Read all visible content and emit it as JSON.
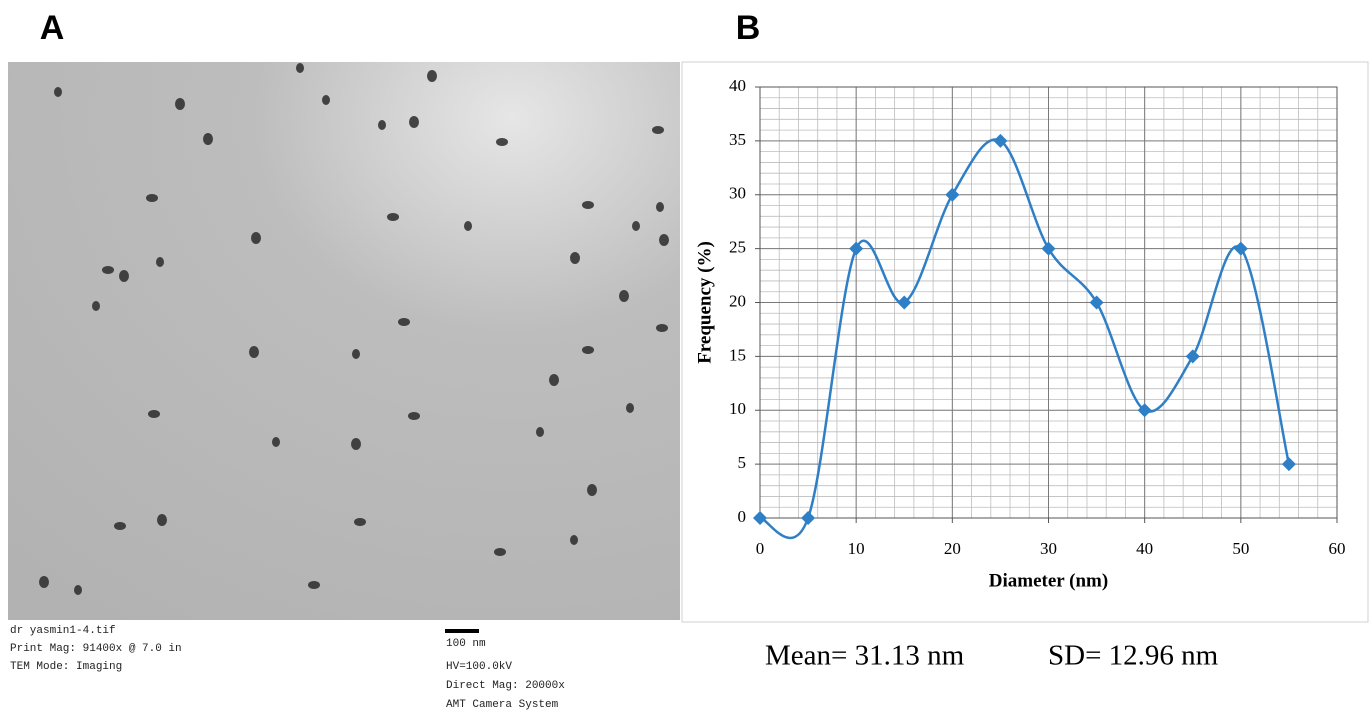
{
  "panel_a": {
    "label": "A",
    "caption_left": [
      "dr yasmin1-4.tif",
      "Print Mag:  91400x @ 7.0 in",
      "TEM Mode: Imaging"
    ],
    "scale_bar": "100 nm",
    "caption_right": [
      "HV=100.0kV",
      "Direct Mag: 20000x",
      "AMT Camera System"
    ]
  },
  "panel_b": {
    "label": "B",
    "summary": [
      "Mean= 31.13 nm",
      "SD= 12.96 nm"
    ]
  },
  "chart_data": {
    "type": "line",
    "x_label": "Diameter (nm)",
    "y_label": "Frequency (%)",
    "x": [
      0,
      5,
      10,
      15,
      20,
      25,
      30,
      35,
      40,
      45,
      50,
      55
    ],
    "values": [
      0,
      0,
      25,
      20,
      30,
      35,
      25,
      20,
      10,
      15,
      25,
      5
    ],
    "color": "#2f7fc6",
    "smooth": true,
    "marker": "diamond",
    "xlim": [
      0,
      60
    ],
    "xticks": [
      0,
      10,
      20,
      30,
      40,
      50,
      60
    ],
    "ylim": [
      0,
      40
    ],
    "yticks": [
      0,
      5,
      10,
      15,
      20,
      25,
      30,
      35,
      40
    ],
    "grid": true,
    "minor_grid": {
      "x": 2,
      "y": 1
    }
  }
}
